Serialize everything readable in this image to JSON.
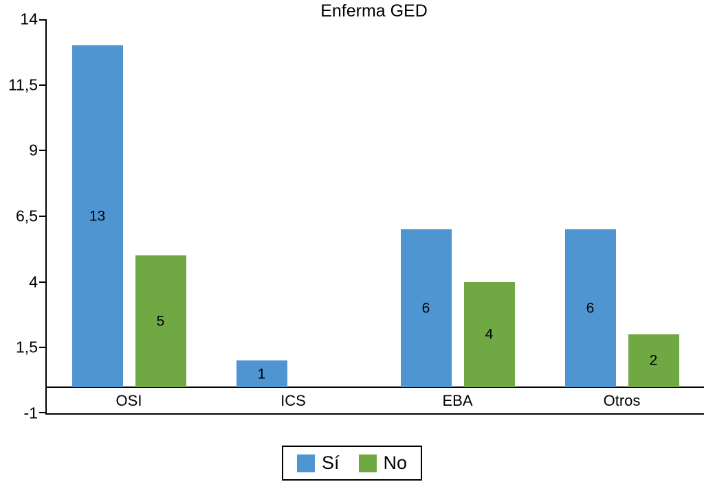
{
  "chart_data": {
    "type": "bar",
    "title": "Enferma GED",
    "categories": [
      "OSI",
      "ICS",
      "EBA",
      "Otros"
    ],
    "series": [
      {
        "name": "Sí",
        "color": "#4e95d2",
        "values": [
          13,
          1,
          6,
          6
        ]
      },
      {
        "name": "No",
        "color": "#70a844",
        "values": [
          5,
          0,
          4,
          2
        ]
      }
    ],
    "y_axis": {
      "min": -1,
      "max": 14,
      "ticks": [
        14,
        11.5,
        9,
        6.5,
        4,
        1.5,
        -1
      ],
      "tick_labels": [
        "14",
        "11,5",
        "9",
        "6,5",
        "4",
        "1,5",
        "-1"
      ]
    },
    "baseline": 0,
    "show_value_labels": true,
    "grid": false,
    "legend": {
      "position": "bottom",
      "entries": [
        "Sí",
        "No"
      ]
    }
  }
}
